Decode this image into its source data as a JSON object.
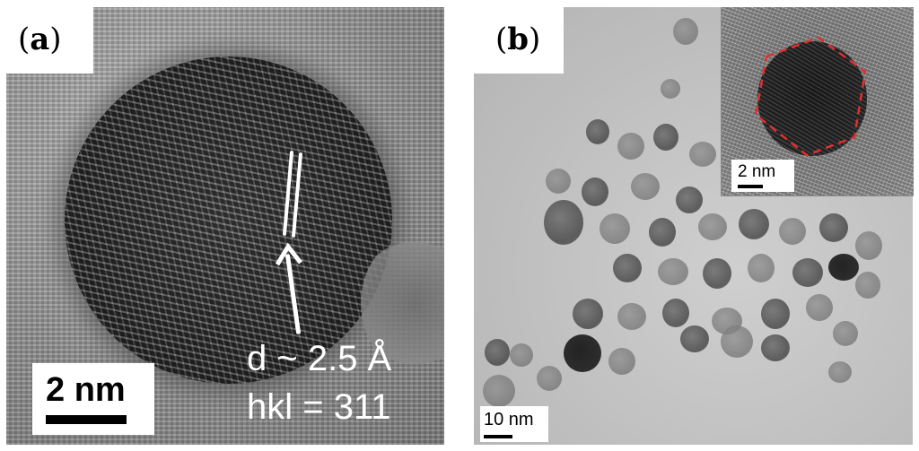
{
  "panel_a": {
    "label_open": "(",
    "label_letter": "a",
    "label_close": ")",
    "scale_bar": "2 nm",
    "annotation_d": "d ~ 2.5 Å",
    "annotation_hkl": "hkl = 311"
  },
  "panel_b": {
    "label_open": "(",
    "label_letter": "b",
    "label_close": ")",
    "scale_bar": "10 nm",
    "inset_scale_bar": "2 nm",
    "inset_outline_color": "#e03030"
  }
}
